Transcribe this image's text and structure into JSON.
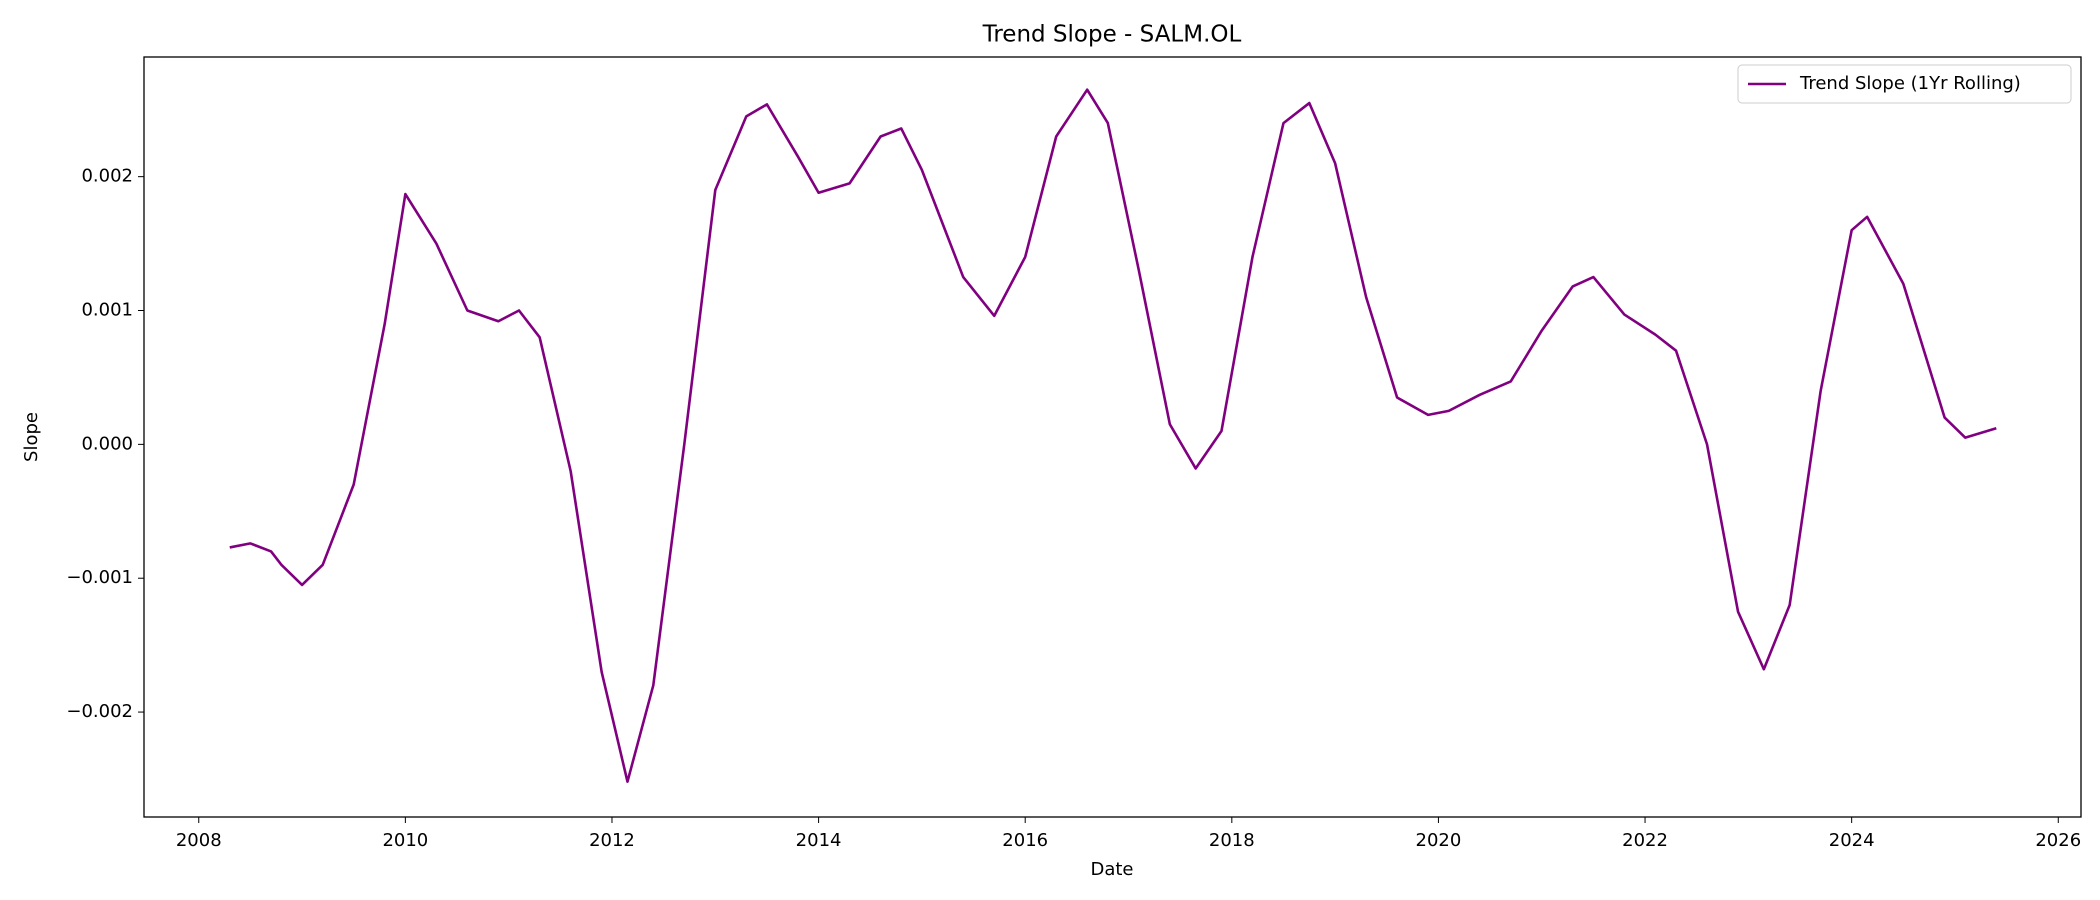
{
  "chart_data": {
    "type": "line",
    "title": "Trend Slope - SALM.OL",
    "xlabel": "Date",
    "ylabel": "Slope",
    "x": [
      2008.3,
      2008.5,
      2008.7,
      2008.8,
      2009.0,
      2009.2,
      2009.5,
      2009.8,
      2010.0,
      2010.3,
      2010.6,
      2010.9,
      2011.1,
      2011.3,
      2011.6,
      2011.9,
      2012.15,
      2012.4,
      2012.7,
      2013.0,
      2013.3,
      2013.5,
      2013.8,
      2014.0,
      2014.3,
      2014.6,
      2014.8,
      2015.0,
      2015.4,
      2015.7,
      2016.0,
      2016.3,
      2016.6,
      2016.8,
      2017.1,
      2017.4,
      2017.65,
      2017.9,
      2018.2,
      2018.5,
      2018.75,
      2019.0,
      2019.3,
      2019.6,
      2019.9,
      2020.1,
      2020.4,
      2020.7,
      2021.0,
      2021.3,
      2021.5,
      2021.8,
      2022.1,
      2022.3,
      2022.6,
      2022.9,
      2023.15,
      2023.4,
      2023.7,
      2024.0,
      2024.15,
      2024.5,
      2024.9,
      2025.1,
      2025.4
    ],
    "series": [
      {
        "name": "Trend Slope (1Yr Rolling)",
        "color": "#800080",
        "values": [
          -0.00077,
          -0.00074,
          -0.0008,
          -0.0009,
          -0.00105,
          -0.0009,
          -0.0003,
          0.0009,
          0.00187,
          0.0015,
          0.001,
          0.00092,
          0.001,
          0.0008,
          -0.0002,
          -0.0017,
          -0.00252,
          -0.0018,
          0.0,
          0.0019,
          0.00245,
          0.00254,
          0.00215,
          0.00188,
          0.00195,
          0.0023,
          0.00236,
          0.00205,
          0.00125,
          0.00096,
          0.0014,
          0.0023,
          0.00265,
          0.0024,
          0.0013,
          0.00015,
          -0.00018,
          0.0001,
          0.0014,
          0.0024,
          0.00255,
          0.0021,
          0.0011,
          0.00035,
          0.00022,
          0.00025,
          0.00037,
          0.00047,
          0.00085,
          0.00118,
          0.00125,
          0.00097,
          0.00082,
          0.0007,
          0.0,
          -0.00125,
          -0.00168,
          -0.0012,
          0.0004,
          0.0016,
          0.0017,
          0.0012,
          0.0002,
          5e-05,
          0.00012
        ]
      }
    ],
    "xlim": [
      2007.47,
      2026.22
    ],
    "xticks": [
      2008,
      2010,
      2012,
      2014,
      2016,
      2018,
      2020,
      2022,
      2024,
      2026
    ],
    "ylim": [
      -0.002784,
      0.002894
    ],
    "yticks": [
      {
        "value": -0.002,
        "label": "−0.002"
      },
      {
        "value": -0.001,
        "label": "−0.001"
      },
      {
        "value": 0,
        "label": "0.000"
      },
      0.001,
      0.002
    ],
    "grid": false,
    "legend": "upper right"
  }
}
